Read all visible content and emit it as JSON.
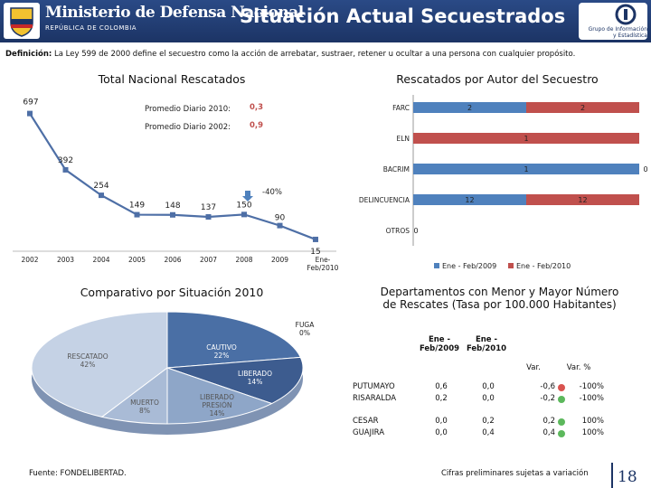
{
  "header": {
    "ministry": "Ministerio de Defensa Nacional",
    "country": "REPÚBLICA DE COLOMBIA",
    "title": "Situación Actual Secuestrados",
    "group_line1": "Grupo de Información",
    "group_line2": "y Estadística"
  },
  "definition": {
    "label": "Definición:",
    "text": " La Ley 599 de 2000 define el secuestro como la acción de arrebatar, sustraer, retener u ocultar a una persona con cualquier propósito."
  },
  "chart_data": [
    {
      "type": "line",
      "title": "Total Nacional Rescatados",
      "categories": [
        "2002",
        "2003",
        "2004",
        "2005",
        "2006",
        "2007",
        "2008",
        "2009",
        "Ene-Feb/2010"
      ],
      "values": [
        697,
        392,
        254,
        149,
        148,
        137,
        150,
        90,
        15
      ],
      "data_labels": [
        "697",
        "392",
        "254",
        "149",
        "148",
        "137",
        "150",
        "90",
        "15"
      ],
      "annotations": [
        {
          "label": "Promedio Diario 2010:",
          "value": "0,3"
        },
        {
          "label": "Promedio Diario 2002:",
          "value": "0,9"
        },
        {
          "label": "-40%"
        }
      ],
      "color": "#4e6fa6"
    },
    {
      "type": "bar",
      "orientation": "horizontal",
      "stacked": true,
      "title": "Rescatados por Autor del Secuestro",
      "categories": [
        "FARC",
        "ELN",
        "BACRIM",
        "DELINCUENCIA",
        "OTROS"
      ],
      "series": [
        {
          "name": "Ene - Feb/2009",
          "values": [
            2,
            0,
            1,
            12,
            0
          ],
          "labels": [
            "2",
            "0",
            "1",
            "12",
            "0"
          ],
          "color": "#4f81bd"
        },
        {
          "name": "Ene - Feb/2010",
          "values": [
            2,
            1,
            0,
            12,
            0
          ],
          "labels": [
            "2",
            "1",
            "0",
            "12",
            ""
          ],
          "color": "#c0504d"
        }
      ],
      "legend": "bottom"
    },
    {
      "type": "pie",
      "title": "Comparativo por Situación 2010",
      "slices": [
        {
          "label": "CAUTIVO",
          "pct_label": "22%",
          "value": 22,
          "color": "#4a6fa5"
        },
        {
          "label": "LIBERADO",
          "pct_label": "14%",
          "value": 14,
          "color": "#3d5c8f"
        },
        {
          "label": "LIBERADO PRESIÓN",
          "pct_label": "14%",
          "value": 14,
          "color": "#8ea6c8"
        },
        {
          "label": "MUERTO",
          "pct_label": "8%",
          "value": 8,
          "color": "#a9bbd6"
        },
        {
          "label": "RESCATADO",
          "pct_label": "42%",
          "value": 42,
          "color": "#c5d2e5"
        },
        {
          "label": "FUGA",
          "pct_label": "0%",
          "value": 0,
          "color": "#22385f"
        }
      ]
    }
  ],
  "table": {
    "title": "Departamentos con Menor y Mayor Número de Rescates (Tasa por 100.000 Habitantes)",
    "headers": [
      "Ene - Feb/2009",
      "Ene - Feb/2010",
      "Var.",
      "Var. %"
    ],
    "rows": [
      {
        "dept": "PUTUMAYO",
        "v2009": "0,6",
        "v2010": "0,0",
        "var": "-0,6",
        "var_pct": "-100%",
        "status": "red"
      },
      {
        "dept": "RISARALDA",
        "v2009": "0,2",
        "v2010": "0,0",
        "var": "-0,2",
        "var_pct": "-100%",
        "status": "green"
      },
      {
        "dept": "CESAR",
        "v2009": "0,0",
        "v2010": "0,2",
        "var": "0,2",
        "var_pct": "100%",
        "status": "green"
      },
      {
        "dept": "GUAJIRA",
        "v2009": "0,0",
        "v2010": "0,4",
        "var": "0,4",
        "var_pct": "100%",
        "status": "green"
      }
    ],
    "status_colors": {
      "red": "#d9534f",
      "green": "#5cb85c"
    }
  },
  "footer": {
    "source": "Fuente: FONDELIBERTAD.",
    "note": "Cifras preliminares sujetas a variación",
    "page": "18"
  }
}
